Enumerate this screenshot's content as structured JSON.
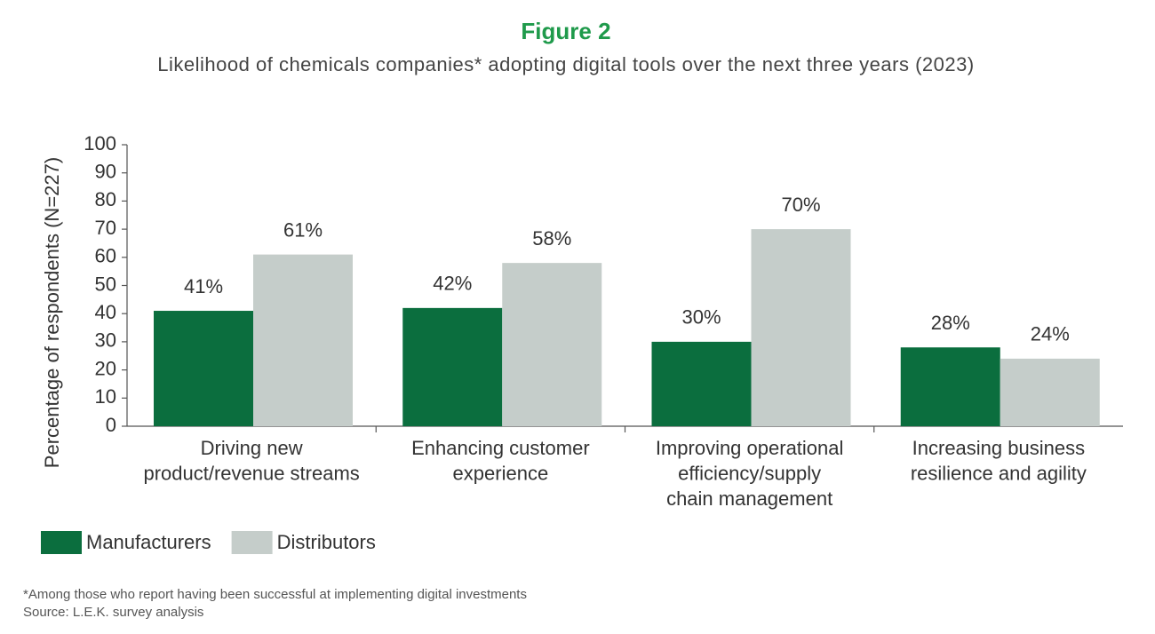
{
  "chart_data": {
    "type": "bar",
    "title": "Figure 2",
    "subtitle": "Likelihood of chemicals companies* adopting digital tools over the next three years (2023)",
    "y_label": "Percentage of respondents (N=227)",
    "categories": [
      "Driving new\nproduct/revenue streams",
      "Enhancing customer\nexperience",
      "Improving operational\nefficiency/supply\nchain management",
      "Increasing business\nresilience and agility"
    ],
    "series": [
      {
        "name": "Manufacturers",
        "color": "#0b6e3e",
        "values": [
          41,
          42,
          30,
          28
        ],
        "value_labels": [
          "41%",
          "42%",
          "30%",
          "28%"
        ]
      },
      {
        "name": "Distributors",
        "color": "#c5cdca",
        "values": [
          61,
          58,
          70,
          24
        ],
        "value_labels": [
          "61%",
          "58%",
          "70%",
          "24%"
        ]
      }
    ],
    "ylim": [
      0,
      100
    ],
    "yticks": [
      0,
      10,
      20,
      30,
      40,
      50,
      60,
      70,
      80,
      90,
      100
    ],
    "grid": false,
    "legend": "bottom-left",
    "footnotes": [
      "*Among those who report having been successful at implementing digital investments",
      "Source: L.E.K. survey analysis"
    ]
  }
}
